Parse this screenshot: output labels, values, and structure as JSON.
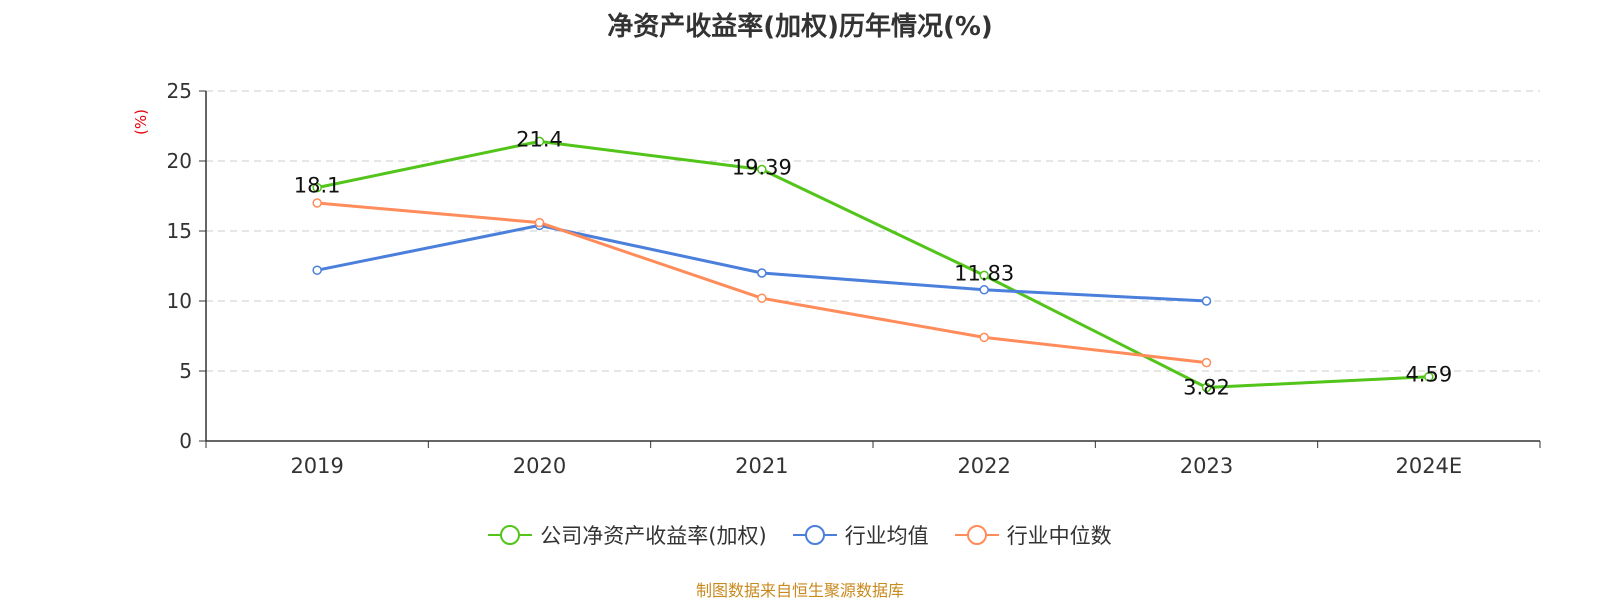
{
  "chart_data": {
    "type": "line",
    "title": "净资产收益率(加权)历年情况(%)",
    "ylabel": "(%)",
    "categories": [
      "2019",
      "2020",
      "2021",
      "2022",
      "2023",
      "2024E"
    ],
    "yticks": [
      "0",
      "5",
      "10",
      "15",
      "20",
      "25"
    ],
    "ylim": [
      0,
      25
    ],
    "grid": true,
    "legend_position": "bottom",
    "series": [
      {
        "name": "公司净资产收益率(加权)",
        "color": "#52c41a",
        "values": [
          18.1,
          21.4,
          19.39,
          11.83,
          3.82,
          4.59
        ],
        "labels": [
          "18.1",
          "21.4",
          "19.39",
          "11.83",
          "3.82",
          "4.59"
        ]
      },
      {
        "name": "行业均值",
        "color": "#4a7fdb",
        "values": [
          12.2,
          15.4,
          12.0,
          10.8,
          10.0,
          null
        ]
      },
      {
        "name": "行业中位数",
        "color": "#ff8c5a",
        "values": [
          17.0,
          15.6,
          10.2,
          7.4,
          5.6,
          null
        ]
      }
    ],
    "footer": "制图数据来自恒生聚源数据库"
  }
}
